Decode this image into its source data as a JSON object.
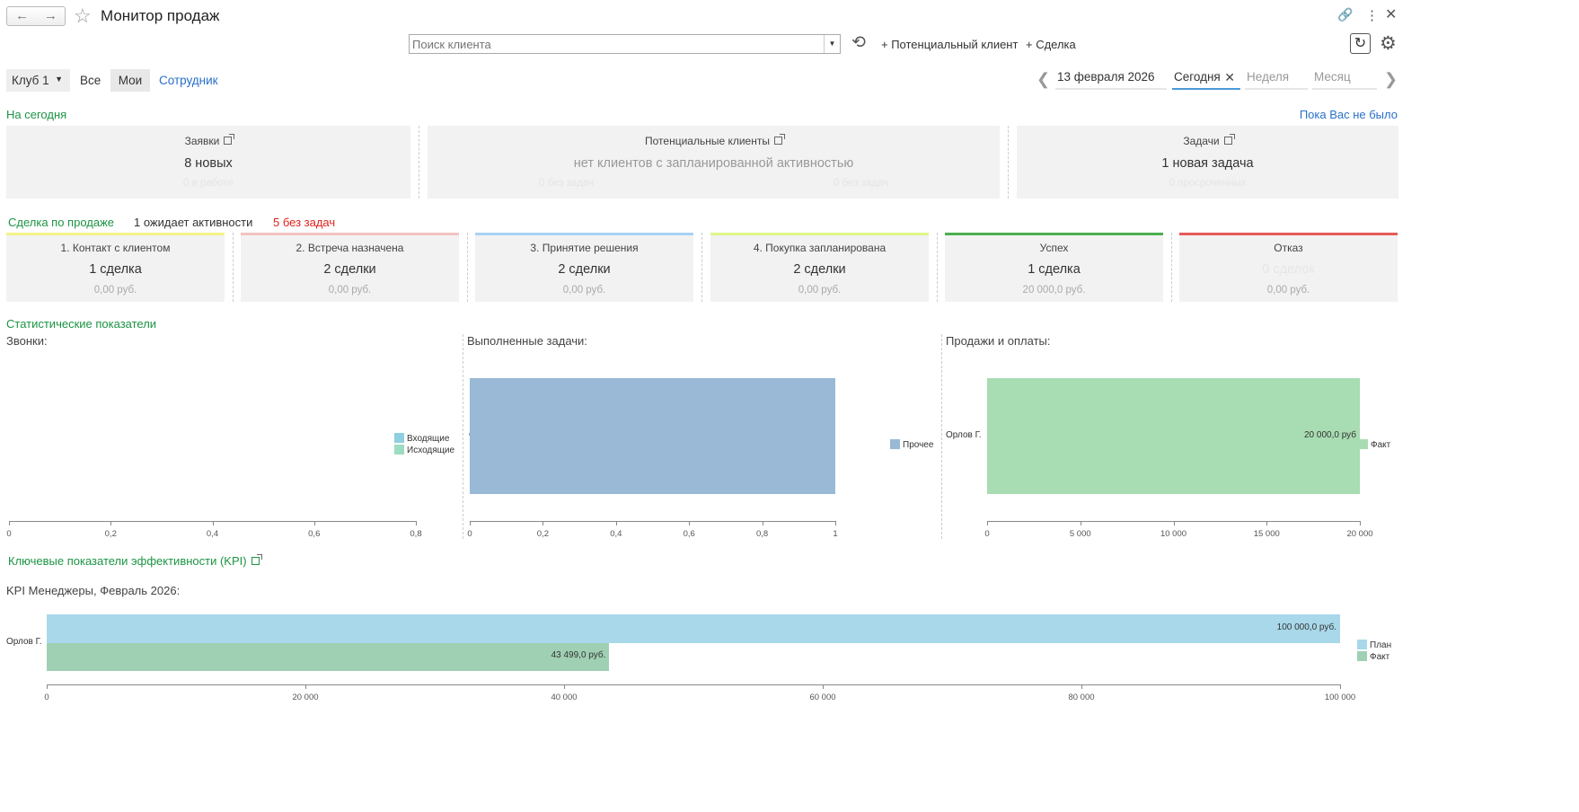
{
  "header": {
    "title": "Монитор продаж",
    "search_placeholder": "Поиск клиента",
    "add_lead_label": "+ Потенциальный клиент",
    "add_deal_label": "+ Сделка"
  },
  "filters": {
    "club": "Клуб 1",
    "all": "Все",
    "mine": "Мои",
    "employee": "Сотрудник"
  },
  "period": {
    "date": "13 февраля 2026",
    "today": "Сегодня",
    "week": "Неделя",
    "month": "Месяц"
  },
  "today_section": {
    "title": "На сегодня",
    "since_away": "Пока Вас не было",
    "cards": [
      {
        "title": "Заявки",
        "value": "8 новых",
        "sub": "0 в работе"
      },
      {
        "title": "Потенциальные клиенты",
        "value": "нет клиентов с запланированной активностью",
        "sub_left": "0 без задач",
        "sub_right": "0 без задач"
      },
      {
        "title": "Задачи",
        "value": "1 новая задача",
        "sub": "0 просроченных"
      }
    ]
  },
  "deals": {
    "title": "Сделка по продаже",
    "awaiting": "1 ожидает активности",
    "no_tasks": "5 без задач",
    "stages": [
      {
        "name": "1. Контакт с клиентом",
        "count": "1 сделка",
        "amount": "0,00 руб.",
        "color": "#f3f38a"
      },
      {
        "name": "2. Встреча назначена",
        "count": "2 сделки",
        "amount": "0,00 руб.",
        "color": "#f3c4c0"
      },
      {
        "name": "3. Принятие решения",
        "count": "2 сделки",
        "amount": "0,00 руб.",
        "color": "#a9d3f5"
      },
      {
        "name": "4. Покупка запланирована",
        "count": "2 сделки",
        "amount": "0,00 руб.",
        "color": "#def58a"
      },
      {
        "name": "Успех",
        "count": "1 сделка",
        "amount": "20 000,0 руб.",
        "color": "#4caf50"
      },
      {
        "name": "Отказ",
        "count": "0 сделок",
        "amount": "0,00 руб.",
        "color": "#e85a5a"
      }
    ]
  },
  "stats": {
    "title": "Статистические показатели",
    "calls_title": "Звонки:",
    "tasks_title": "Выполненные задачи:",
    "sales_title": "Продажи и оплаты:",
    "kpi_title": "Ключевые показатели эффективности (KPI)",
    "kpi_chart_title": "KPI Менеджеры, Февраль 2026:"
  },
  "chart_data": [
    {
      "type": "bar",
      "title": "Звонки:",
      "orientation": "horizontal",
      "categories": [],
      "series": [
        {
          "name": "Входящие",
          "values": [],
          "color": "#8fcfe0"
        },
        {
          "name": "Исходящие",
          "values": [],
          "color": "#9ddcc0"
        }
      ],
      "xlim": [
        0,
        0.8
      ],
      "ticks": [
        "0",
        "0,2",
        "0,4",
        "0,6",
        "0,8"
      ]
    },
    {
      "type": "bar",
      "title": "Выполненные задачи:",
      "orientation": "horizontal",
      "categories": [
        "Орлов Г."
      ],
      "series": [
        {
          "name": "Прочее",
          "values": [
            1
          ],
          "color": "#99b9d6"
        }
      ],
      "xlim": [
        0,
        1
      ],
      "ticks": [
        "0",
        "0,2",
        "0,4",
        "0,6",
        "0,8",
        "1"
      ]
    },
    {
      "type": "bar",
      "title": "Продажи и оплаты:",
      "orientation": "horizontal",
      "categories": [
        "Орлов Г."
      ],
      "series": [
        {
          "name": "Факт",
          "values": [
            20000
          ],
          "color": "#a8dcb2",
          "labels": [
            "20 000,0 руб"
          ]
        }
      ],
      "xlim": [
        0,
        20000
      ],
      "ticks": [
        "0",
        "5 000",
        "10 000",
        "15 000",
        "20 000"
      ]
    },
    {
      "type": "bar",
      "title": "KPI Менеджеры, Февраль 2026:",
      "orientation": "horizontal",
      "categories": [
        "Орлов Г."
      ],
      "series": [
        {
          "name": "План",
          "values": [
            100000
          ],
          "color": "#a8d8ea",
          "labels": [
            "100 000,0 руб."
          ]
        },
        {
          "name": "Факт",
          "values": [
            43499
          ],
          "color": "#9fd0b3",
          "labels": [
            "43 499,0 руб."
          ]
        }
      ],
      "xlim": [
        0,
        100000
      ],
      "ticks": [
        "0",
        "20 000",
        "40 000",
        "60 000",
        "80 000",
        "100 000"
      ]
    }
  ]
}
